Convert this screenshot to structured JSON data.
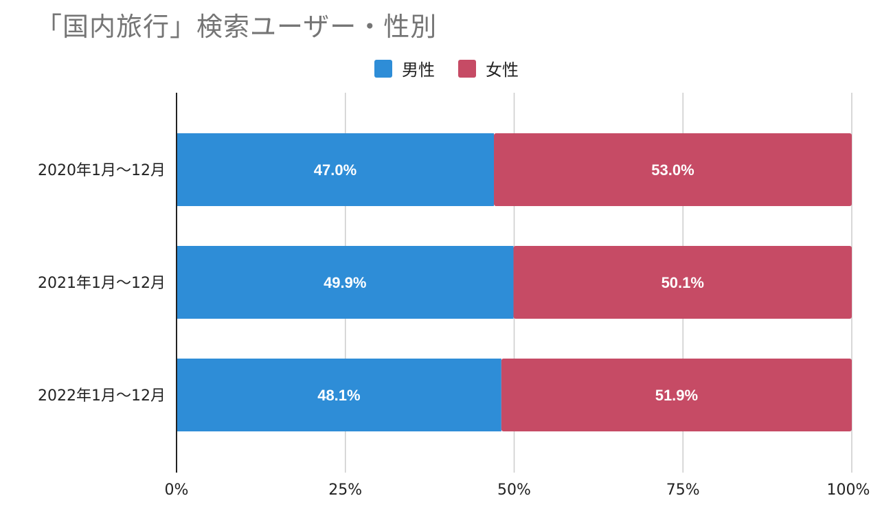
{
  "colors": {
    "male": "#2e8dd7",
    "female": "#c64b65",
    "grid": "#cccccc",
    "axis": "#222222"
  },
  "chart_data": {
    "type": "bar",
    "orientation": "horizontal",
    "stacked": "percent",
    "title": "「国内旅行」検索ユーザー・性別",
    "categories": [
      "2020年1月～12月",
      "2021年1月～12月",
      "2022年1月～12月"
    ],
    "series": [
      {
        "name": "男性",
        "values": [
          47.0,
          49.9,
          48.1
        ],
        "labels": [
          "47.0%",
          "49.9%",
          "48.1%"
        ]
      },
      {
        "name": "女性",
        "values": [
          53.0,
          50.1,
          51.9
        ],
        "labels": [
          "53.0%",
          "50.1%",
          "51.9%"
        ]
      }
    ],
    "xlim": [
      0,
      100
    ],
    "xticks": [
      0,
      25,
      50,
      75,
      100
    ],
    "xtick_labels": [
      "0%",
      "25%",
      "50%",
      "75%",
      "100%"
    ],
    "grid": true,
    "legend": "top-center"
  }
}
